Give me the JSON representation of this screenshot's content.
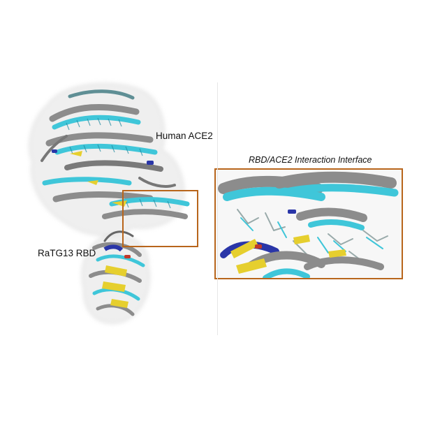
{
  "labels": {
    "human_ace2": "Human ACE2",
    "ratg13_rbd": "RaTG13 RBD",
    "interface_title": "RBD/ACE2 Interaction Interface"
  },
  "colors": {
    "helix_cyan": "#3fc6d9",
    "helix_gray": "#8c8c8c",
    "strand_yellow": "#e6cf2e",
    "accent_blue": "#2a36a8",
    "accent_red": "#c0392b",
    "inset_border": "#b8651b",
    "surface": "#d9d9d9"
  }
}
